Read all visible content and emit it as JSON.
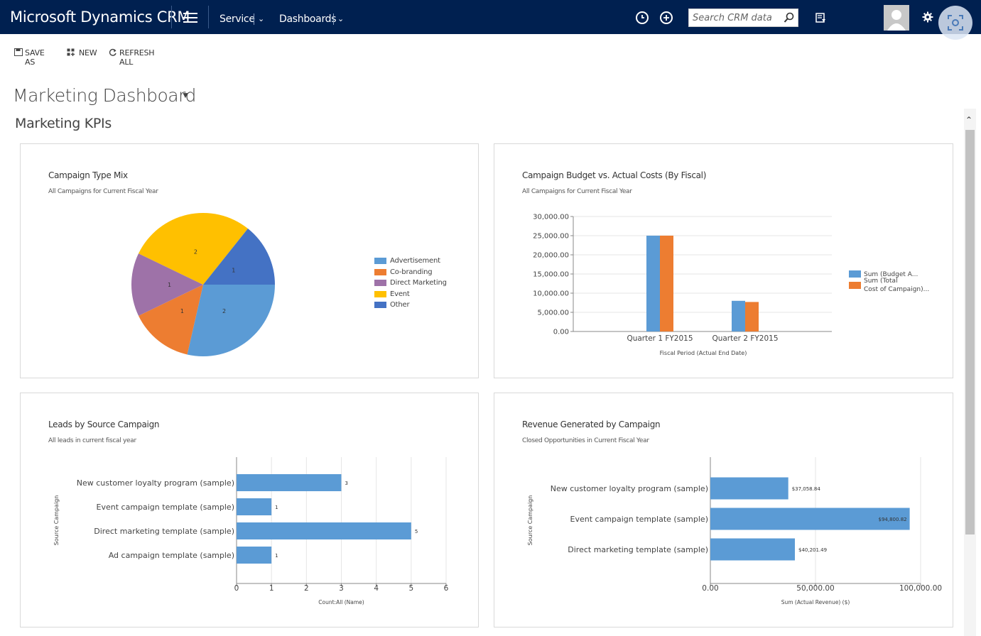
{
  "navbar": {
    "brand": "Microsoft Dynamics CRM",
    "items": [
      {
        "label": "Service"
      },
      {
        "label": "Dashboards"
      }
    ],
    "search_placeholder": "Search CRM data",
    "bg_color": "#002050"
  },
  "commands": {
    "save_as": "SAVE AS",
    "new": "NEW",
    "refresh_all": "REFRESH ALL"
  },
  "page": {
    "title": "Marketing Dashboard",
    "section": "Marketing KPIs"
  },
  "chart_data": [
    {
      "type": "pie",
      "title": "Campaign Type Mix",
      "subtitle": "All Campaigns for Current Fiscal Year",
      "categories": [
        "Advertisement",
        "Co-branding",
        "Direct Marketing",
        "Event",
        "Other"
      ],
      "values": [
        2,
        1,
        1,
        2,
        1
      ],
      "colors": [
        "#5b9bd5",
        "#ed7d31",
        "#9e72a8",
        "#ffc000",
        "#4472c4"
      ],
      "legend": "right"
    },
    {
      "type": "bar",
      "title": "Campaign Budget vs. Actual Costs (By Fiscal)",
      "subtitle": "All Campaigns for Current Fiscal Year",
      "categories": [
        "Quarter 1 FY2015",
        "Quarter 2 FY2015"
      ],
      "series": [
        {
          "name": "Sum (Budget A...",
          "values": [
            25000,
            8000
          ],
          "color": "#5b9bd5"
        },
        {
          "name": "Sum (Total Cost of Campaign)...",
          "values": [
            25000,
            7700
          ],
          "color": "#ed7d31"
        }
      ],
      "xlabel": "Fiscal Period (Actual End Date)",
      "ylabel": "",
      "ylim": [
        0,
        30000
      ],
      "yticks": [
        "0.00",
        "5,000.00",
        "10,000.00",
        "15,000.00",
        "20,000.00",
        "25,000.00",
        "30,000.00"
      ],
      "legend": "right",
      "grid": true
    },
    {
      "type": "bar",
      "orientation": "horizontal",
      "title": "Leads by Source Campaign",
      "subtitle": "All leads in current fiscal year",
      "categories": [
        "New customer loyalty program (sample)",
        "Event campaign template (sample)",
        "Direct marketing template (sample)",
        "Ad campaign template (sample)"
      ],
      "values": [
        3,
        1,
        5,
        1
      ],
      "value_labels": [
        "3",
        "1",
        "5",
        "1"
      ],
      "xlabel": "Count:All (Name)",
      "ylabel": "Source Campaign",
      "xlim": [
        0,
        6
      ],
      "xticks": [
        "0",
        "1",
        "2",
        "3",
        "4",
        "5",
        "6"
      ],
      "color": "#5b9bd5",
      "grid": true
    },
    {
      "type": "bar",
      "orientation": "horizontal",
      "title": "Revenue Generated by Campaign",
      "subtitle": "Closed Opportunities in Current Fiscal Year",
      "categories": [
        "New customer loyalty program (sample)",
        "Event campaign template (sample)",
        "Direct marketing template (sample)"
      ],
      "values": [
        37058.84,
        94800.82,
        40201.49
      ],
      "value_labels": [
        "$37,058.84",
        "$94,800.82",
        "$40,201.49"
      ],
      "xlabel": "Sum (Actual Revenue) ($)",
      "ylabel": "Source Campaign",
      "xlim": [
        0,
        100000
      ],
      "xticks": [
        "0.00",
        "50,000.00",
        "100,000.00"
      ],
      "color": "#5b9bd5",
      "grid": true
    }
  ]
}
